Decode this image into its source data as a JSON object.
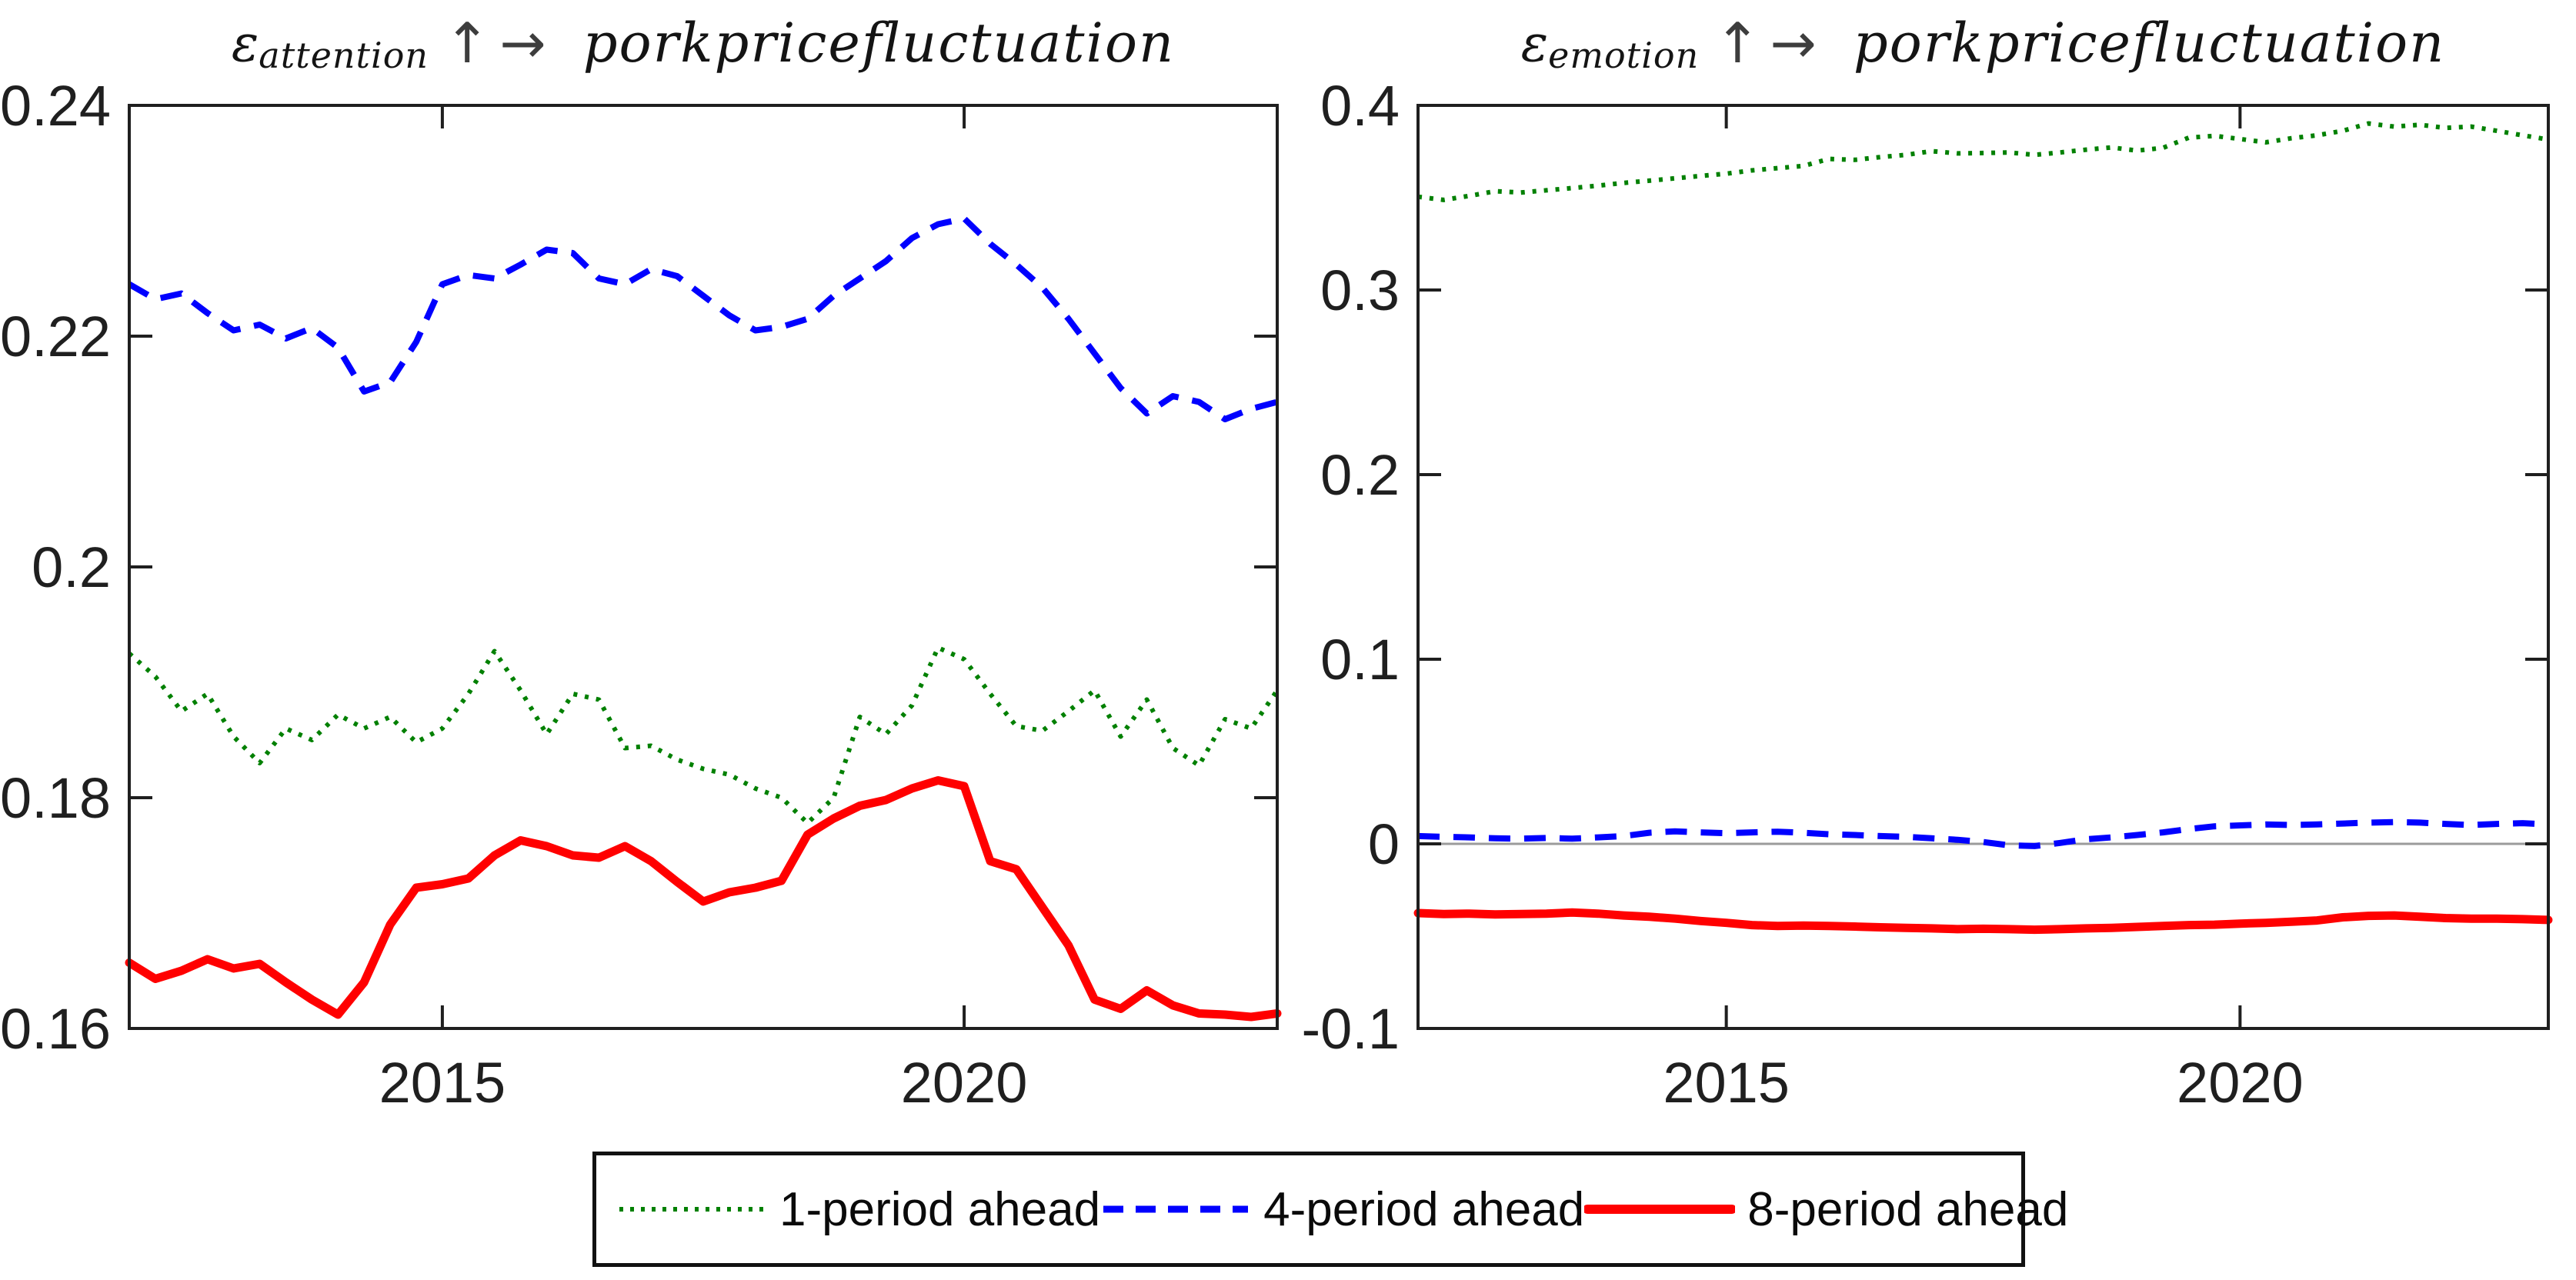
{
  "figure": {
    "background": "#ffffff",
    "axis_color": "#1f1f1f",
    "zero_line_color": "#9b9b9b"
  },
  "titles": [
    {
      "symbol": "ε",
      "subscript": "attention",
      "arrows": "↑→",
      "target": "porkpricefluctuation"
    },
    {
      "symbol": "ε",
      "subscript": "emotion",
      "arrows": "↑→",
      "target": "porkpricefluctuation"
    }
  ],
  "legend": {
    "entries": [
      {
        "label": "1-period ahead",
        "color": "#008000",
        "style": "dotted"
      },
      {
        "label": "4-period ahead",
        "color": "#0000ff",
        "style": "dashed"
      },
      {
        "label": "8-period ahead",
        "color": "#ff0000",
        "style": "solid"
      }
    ]
  },
  "chart_data": [
    {
      "type": "line",
      "title": "ε_attention ↑ → porkpricefluctuation",
      "xlabel": "",
      "ylabel": "",
      "xlim": [
        2012,
        2023
      ],
      "ylim": [
        0.16,
        0.24
      ],
      "grid": false,
      "box": true,
      "zero_line": null,
      "x_ticks": [
        {
          "value": 2015,
          "label": "2015"
        },
        {
          "value": 2020,
          "label": "2020"
        }
      ],
      "y_ticks": [
        {
          "value": 0.16,
          "label": "0.16"
        },
        {
          "value": 0.18,
          "label": "0.18"
        },
        {
          "value": 0.2,
          "label": "0.2"
        },
        {
          "value": 0.22,
          "label": "0.22"
        },
        {
          "value": 0.24,
          "label": "0.24"
        }
      ],
      "x": [
        2012,
        2012.25,
        2012.5,
        2012.75,
        2013,
        2013.25,
        2013.5,
        2013.75,
        2014,
        2014.25,
        2014.5,
        2014.75,
        2015,
        2015.25,
        2015.5,
        2015.75,
        2016,
        2016.25,
        2016.5,
        2016.75,
        2017,
        2017.25,
        2017.5,
        2017.75,
        2018,
        2018.25,
        2018.5,
        2018.75,
        2019,
        2019.25,
        2019.5,
        2019.75,
        2020,
        2020.25,
        2020.5,
        2020.75,
        2021,
        2021.25,
        2021.5,
        2021.75,
        2022,
        2022.25,
        2022.5,
        2022.75,
        2023
      ],
      "series": [
        {
          "name": "1-period ahead",
          "color": "#008000",
          "style": "dotted",
          "values": [
            0.1925,
            0.1905,
            0.1875,
            0.189,
            0.1853,
            0.183,
            0.186,
            0.185,
            0.1872,
            0.186,
            0.187,
            0.1848,
            0.186,
            0.189,
            0.1927,
            0.1893,
            0.1855,
            0.189,
            0.1885,
            0.1843,
            0.1845,
            0.1833,
            0.1825,
            0.182,
            0.1808,
            0.18,
            0.1778,
            0.18,
            0.187,
            0.1855,
            0.188,
            0.193,
            0.192,
            0.189,
            0.1862,
            0.1858,
            0.1875,
            0.1893,
            0.1853,
            0.1885,
            0.1843,
            0.1828,
            0.1868,
            0.186,
            0.1893
          ]
        },
        {
          "name": "4-period ahead",
          "color": "#0000ff",
          "style": "dashed",
          "values": [
            0.2245,
            0.2232,
            0.2237,
            0.222,
            0.2205,
            0.221,
            0.2198,
            0.2207,
            0.219,
            0.2152,
            0.216,
            0.2195,
            0.2245,
            0.2253,
            0.225,
            0.2262,
            0.2275,
            0.2272,
            0.225,
            0.2245,
            0.2258,
            0.2252,
            0.2235,
            0.2218,
            0.2205,
            0.2208,
            0.2215,
            0.2235,
            0.225,
            0.2265,
            0.2285,
            0.2297,
            0.2302,
            0.228,
            0.2262,
            0.2242,
            0.2215,
            0.2185,
            0.2155,
            0.2133,
            0.2148,
            0.2143,
            0.2128,
            0.2137,
            0.2143
          ]
        },
        {
          "name": "8-period ahead",
          "color": "#ff0000",
          "style": "solid",
          "values": [
            0.1657,
            0.1643,
            0.165,
            0.166,
            0.1652,
            0.1656,
            0.164,
            0.1625,
            0.1612,
            0.164,
            0.169,
            0.1722,
            0.1725,
            0.173,
            0.175,
            0.1763,
            0.1758,
            0.175,
            0.1748,
            0.1758,
            0.1745,
            0.1727,
            0.171,
            0.1718,
            0.1722,
            0.1728,
            0.1768,
            0.1782,
            0.1793,
            0.1798,
            0.1808,
            0.1815,
            0.181,
            0.1745,
            0.1738,
            0.1705,
            0.1672,
            0.1625,
            0.1617,
            0.1633,
            0.162,
            0.1613,
            0.1612,
            0.161,
            0.1613
          ]
        }
      ]
    },
    {
      "type": "line",
      "title": "ε_emotion ↑ → porkpricefluctuation",
      "xlabel": "",
      "ylabel": "",
      "xlim": [
        2012,
        2023
      ],
      "ylim": [
        -0.1,
        0.4
      ],
      "grid": false,
      "box": true,
      "zero_line": 0,
      "x_ticks": [
        {
          "value": 2015,
          "label": "2015"
        },
        {
          "value": 2020,
          "label": "2020"
        }
      ],
      "y_ticks": [
        {
          "value": -0.1,
          "label": "-0.1"
        },
        {
          "value": 0,
          "label": "0"
        },
        {
          "value": 0.1,
          "label": "0.1"
        },
        {
          "value": 0.2,
          "label": "0.2"
        },
        {
          "value": 0.3,
          "label": "0.3"
        },
        {
          "value": 0.4,
          "label": "0.4"
        }
      ],
      "x": [
        2012,
        2012.25,
        2012.5,
        2012.75,
        2013,
        2013.25,
        2013.5,
        2013.75,
        2014,
        2014.25,
        2014.5,
        2014.75,
        2015,
        2015.25,
        2015.5,
        2015.75,
        2016,
        2016.25,
        2016.5,
        2016.75,
        2017,
        2017.25,
        2017.5,
        2017.75,
        2018,
        2018.25,
        2018.5,
        2018.75,
        2019,
        2019.25,
        2019.5,
        2019.75,
        2020,
        2020.25,
        2020.5,
        2020.75,
        2021,
        2021.25,
        2021.5,
        2021.75,
        2022,
        2022.25,
        2022.5,
        2022.75,
        2023
      ],
      "series": [
        {
          "name": "1-period ahead",
          "color": "#008000",
          "style": "dotted",
          "values": [
            0.3505,
            0.3488,
            0.351,
            0.3535,
            0.3528,
            0.354,
            0.3552,
            0.3565,
            0.358,
            0.3592,
            0.3605,
            0.3618,
            0.363,
            0.3648,
            0.366,
            0.3672,
            0.371,
            0.3705,
            0.372,
            0.3732,
            0.3752,
            0.374,
            0.3742,
            0.3745,
            0.3732,
            0.3745,
            0.376,
            0.3772,
            0.3755,
            0.377,
            0.3825,
            0.3835,
            0.3818,
            0.38,
            0.3822,
            0.3838,
            0.3862,
            0.3902,
            0.3885,
            0.3895,
            0.3878,
            0.3885,
            0.3862,
            0.3838,
            0.3815
          ]
        },
        {
          "name": "4-period ahead",
          "color": "#0000ff",
          "style": "dashed",
          "values": [
            0.0042,
            0.0038,
            0.0035,
            0.003,
            0.0028,
            0.0032,
            0.0028,
            0.0035,
            0.0042,
            0.006,
            0.0068,
            0.0062,
            0.0058,
            0.0062,
            0.0066,
            0.006,
            0.0052,
            0.0048,
            0.0042,
            0.0038,
            0.003,
            0.0022,
            0.001,
            -0.0008,
            -0.0012,
            0.0005,
            0.0025,
            0.0035,
            0.0048,
            0.0062,
            0.008,
            0.0095,
            0.01,
            0.0105,
            0.0102,
            0.0105,
            0.011,
            0.0115,
            0.0118,
            0.0115,
            0.0108,
            0.0102,
            0.0108,
            0.0112,
            0.0105
          ]
        },
        {
          "name": "8-period ahead",
          "color": "#ff0000",
          "style": "solid",
          "values": [
            -0.0375,
            -0.038,
            -0.0378,
            -0.0382,
            -0.038,
            -0.0378,
            -0.0372,
            -0.0378,
            -0.0388,
            -0.0395,
            -0.0405,
            -0.0418,
            -0.0428,
            -0.044,
            -0.0445,
            -0.0443,
            -0.0445,
            -0.0448,
            -0.0452,
            -0.0455,
            -0.0458,
            -0.0462,
            -0.046,
            -0.0462,
            -0.0465,
            -0.0462,
            -0.0458,
            -0.0455,
            -0.045,
            -0.0445,
            -0.044,
            -0.0438,
            -0.0432,
            -0.0428,
            -0.0422,
            -0.0415,
            -0.0398,
            -0.039,
            -0.0388,
            -0.0395,
            -0.0402,
            -0.0405,
            -0.0405,
            -0.0408,
            -0.0412
          ]
        }
      ]
    }
  ]
}
